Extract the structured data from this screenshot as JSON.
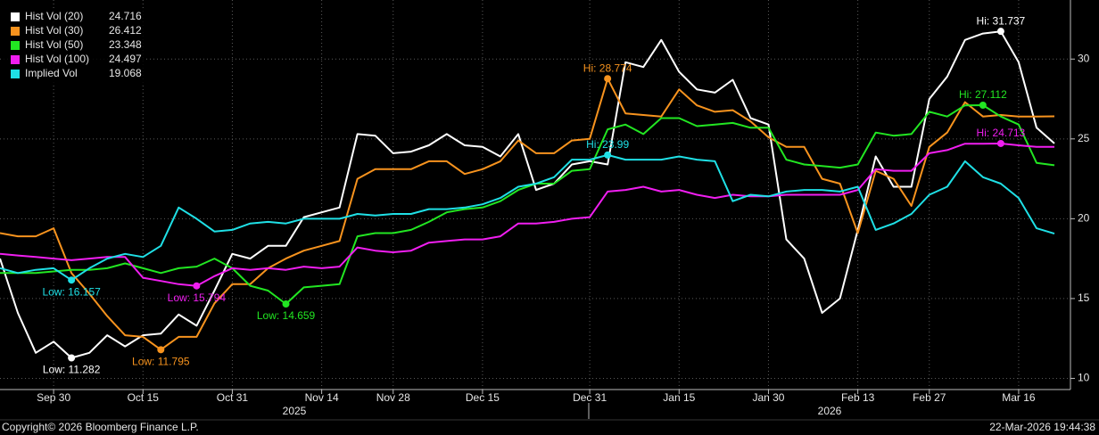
{
  "chart_data": {
    "type": "line",
    "categories": [
      null,
      null,
      null,
      "Sep 30",
      null,
      null,
      null,
      null,
      "Oct 15",
      null,
      null,
      null,
      null,
      "Oct 31",
      null,
      null,
      null,
      null,
      "Nov 14",
      null,
      null,
      null,
      "Nov 28",
      null,
      null,
      null,
      null,
      "Dec 15",
      null,
      null,
      null,
      null,
      null,
      "Dec 31",
      null,
      null,
      null,
      null,
      "Jan 15",
      null,
      null,
      null,
      null,
      "Jan 30",
      null,
      null,
      null,
      null,
      "Feb 13",
      null,
      null,
      null,
      "Feb 27",
      null,
      null,
      null,
      null,
      "Mar 16",
      null,
      null
    ],
    "years": [
      "2025",
      "2026"
    ],
    "ylim": [
      9.3,
      33.7
    ],
    "yticks": [
      10,
      15,
      20,
      25,
      30
    ],
    "grid": true,
    "legend": "top-left",
    "series": [
      {
        "name": "Hist Vol (20)",
        "color": "#ffffff",
        "values": [
          17.5,
          14.1,
          11.6,
          12.3,
          11.282,
          11.6,
          12.7,
          12.0,
          12.7,
          12.8,
          14.0,
          13.3,
          15.5,
          17.8,
          17.5,
          18.3,
          18.3,
          20.1,
          20.4,
          20.7,
          25.3,
          25.2,
          24.1,
          24.2,
          24.6,
          25.3,
          24.6,
          24.5,
          23.9,
          25.3,
          21.8,
          22.2,
          23.4,
          23.6,
          23.4,
          29.8,
          29.5,
          31.2,
          29.2,
          28.1,
          27.9,
          28.7,
          26.3,
          25.9,
          18.7,
          17.5,
          14.1,
          15.0,
          19.3,
          23.9,
          22.0,
          22.0,
          27.5,
          28.9,
          31.2,
          31.6,
          31.737,
          29.8,
          25.7,
          24.716
        ]
      },
      {
        "name": "Hist Vol (30)",
        "color": "#f7931e",
        "values": [
          19.1,
          18.9,
          18.9,
          19.4,
          16.6,
          15.3,
          13.9,
          12.7,
          12.6,
          11.795,
          12.6,
          12.6,
          14.7,
          15.9,
          15.9,
          16.9,
          17.5,
          18.0,
          18.3,
          18.6,
          22.5,
          23.1,
          23.1,
          23.1,
          23.6,
          23.6,
          22.8,
          23.1,
          23.6,
          24.9,
          24.1,
          24.1,
          24.9,
          25.0,
          28.774,
          26.6,
          26.5,
          26.4,
          28.1,
          27.1,
          26.7,
          26.8,
          26.1,
          25.1,
          24.5,
          24.5,
          22.5,
          22.2,
          19.1,
          23.0,
          22.5,
          20.8,
          24.5,
          25.4,
          27.3,
          26.4,
          26.5,
          26.4,
          26.4,
          26.412
        ]
      },
      {
        "name": "Hist Vol (50)",
        "color": "#22e622",
        "values": [
          16.6,
          16.6,
          16.6,
          16.7,
          16.8,
          16.8,
          16.9,
          17.2,
          16.9,
          16.6,
          16.9,
          17.0,
          17.5,
          16.9,
          15.8,
          15.5,
          14.659,
          15.7,
          15.8,
          15.9,
          18.9,
          19.1,
          19.1,
          19.3,
          19.8,
          20.4,
          20.6,
          20.7,
          21.1,
          21.8,
          22.2,
          22.2,
          23.0,
          23.1,
          25.6,
          25.9,
          25.3,
          26.3,
          26.3,
          25.8,
          25.9,
          26.0,
          25.7,
          25.7,
          23.7,
          23.4,
          23.3,
          23.2,
          23.4,
          25.4,
          25.2,
          25.3,
          26.7,
          26.4,
          27.1,
          27.112,
          26.4,
          25.9,
          23.5,
          23.348
        ]
      },
      {
        "name": "Hist Vol (100)",
        "color": "#f01ef0",
        "values": [
          17.8,
          17.7,
          17.6,
          17.5,
          17.4,
          17.5,
          17.6,
          17.6,
          16.3,
          16.1,
          15.9,
          15.794,
          16.4,
          16.9,
          16.8,
          16.9,
          16.8,
          17.0,
          16.9,
          17.0,
          18.2,
          18.0,
          17.9,
          18.0,
          18.5,
          18.6,
          18.7,
          18.7,
          18.9,
          19.7,
          19.7,
          19.8,
          20.0,
          20.1,
          21.7,
          21.8,
          22.0,
          21.7,
          21.8,
          21.5,
          21.3,
          21.5,
          21.4,
          21.4,
          21.5,
          21.5,
          21.5,
          21.5,
          21.8,
          23.1,
          23.0,
          23.0,
          24.1,
          24.3,
          24.7,
          24.7,
          24.713,
          24.6,
          24.5,
          24.497
        ]
      },
      {
        "name": "Implied Vol",
        "color": "#1fe0e6",
        "values": [
          16.9,
          16.6,
          16.8,
          16.9,
          16.157,
          16.9,
          17.5,
          17.8,
          17.6,
          18.3,
          20.7,
          20.0,
          19.2,
          19.3,
          19.7,
          19.8,
          19.7,
          20.0,
          20.0,
          20.0,
          20.3,
          20.2,
          20.3,
          20.3,
          20.6,
          20.6,
          20.7,
          20.9,
          21.3,
          22.0,
          22.2,
          22.6,
          23.7,
          23.7,
          23.99,
          23.7,
          23.7,
          23.7,
          23.9,
          23.7,
          23.6,
          21.1,
          21.5,
          21.4,
          21.7,
          21.8,
          21.8,
          21.7,
          22.0,
          19.3,
          19.7,
          20.3,
          21.5,
          22.0,
          23.6,
          22.6,
          22.2,
          21.3,
          19.4,
          19.068
        ]
      }
    ],
    "annotations": [
      {
        "series": 0,
        "index": 4,
        "value": 11.282,
        "label": "Low: 11.282",
        "kind": "low"
      },
      {
        "series": 0,
        "index": 56,
        "value": 31.737,
        "label": "Hi: 31.737",
        "kind": "high"
      },
      {
        "series": 1,
        "index": 9,
        "value": 11.795,
        "label": "Low: 11.795",
        "kind": "low"
      },
      {
        "series": 1,
        "index": 34,
        "value": 28.774,
        "label": "Hi: 28.774",
        "kind": "high"
      },
      {
        "series": 2,
        "index": 16,
        "value": 14.659,
        "label": "Low: 14.659",
        "kind": "low"
      },
      {
        "series": 2,
        "index": 55,
        "value": 27.112,
        "label": "Hi: 27.112",
        "kind": "high"
      },
      {
        "series": 3,
        "index": 11,
        "value": 15.794,
        "label": "Low: 15.794",
        "kind": "low"
      },
      {
        "series": 3,
        "index": 56,
        "value": 24.713,
        "label": "Hi: 24.713",
        "kind": "high"
      },
      {
        "series": 4,
        "index": 4,
        "value": 16.157,
        "label": "Low: 16.157",
        "kind": "low"
      },
      {
        "series": 4,
        "index": 34,
        "value": 23.99,
        "label": "Hi: 23.99",
        "kind": "high"
      }
    ]
  },
  "footer": {
    "copyright": "Copyright© 2026 Bloomberg Finance L.P.",
    "timestamp": "22-Mar-2026 19:44:38"
  }
}
